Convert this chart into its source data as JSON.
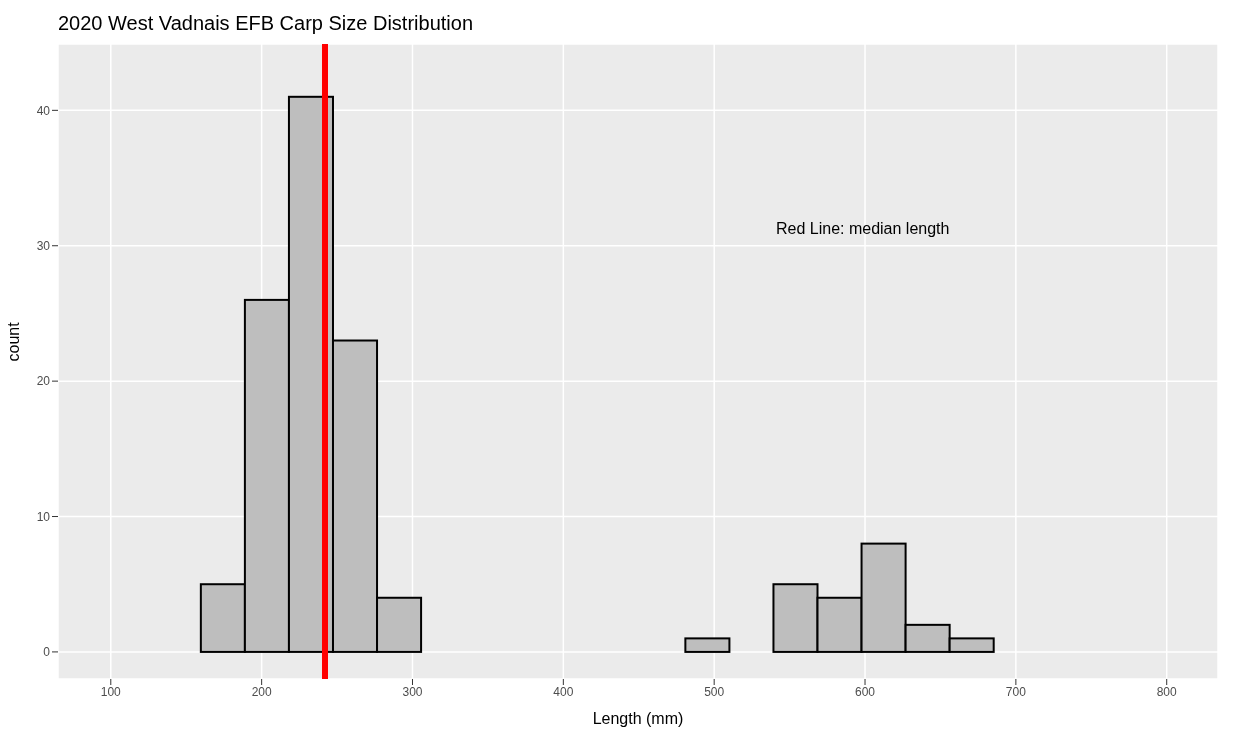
{
  "chart_data": {
    "type": "histogram",
    "title": "2020 West Vadnais EFB Carp Size Distribution",
    "xlabel": "Length (mm)",
    "ylabel": "count",
    "bins": [
      101.3,
      130.5,
      159.7,
      188.9,
      218.1,
      247.3,
      276.5,
      305.7,
      334.9,
      364.1,
      393.3,
      422.5,
      451.7,
      480.9,
      510.1,
      539.3,
      568.5,
      597.7,
      626.9,
      656.1,
      685.3,
      714.5,
      743.7,
      772.9
    ],
    "values": [
      0,
      0,
      5,
      26,
      41,
      23,
      4,
      0,
      0,
      0,
      0,
      0,
      0,
      1,
      0,
      5,
      4,
      8,
      2,
      1,
      0,
      0,
      0
    ],
    "color": "#bebebe",
    "xlim": [
      65,
      834
    ],
    "xticks": [
      100,
      200,
      300,
      400,
      500,
      600,
      700,
      800
    ],
    "ylim": [
      -2,
      44.9
    ],
    "yticks": [
      0,
      10,
      20,
      30,
      40
    ],
    "grid": true,
    "ref_lines": [
      {
        "axis": "x",
        "value": 242,
        "color": "#ff0000"
      }
    ],
    "annotations": [
      "Red Line: median length"
    ]
  }
}
